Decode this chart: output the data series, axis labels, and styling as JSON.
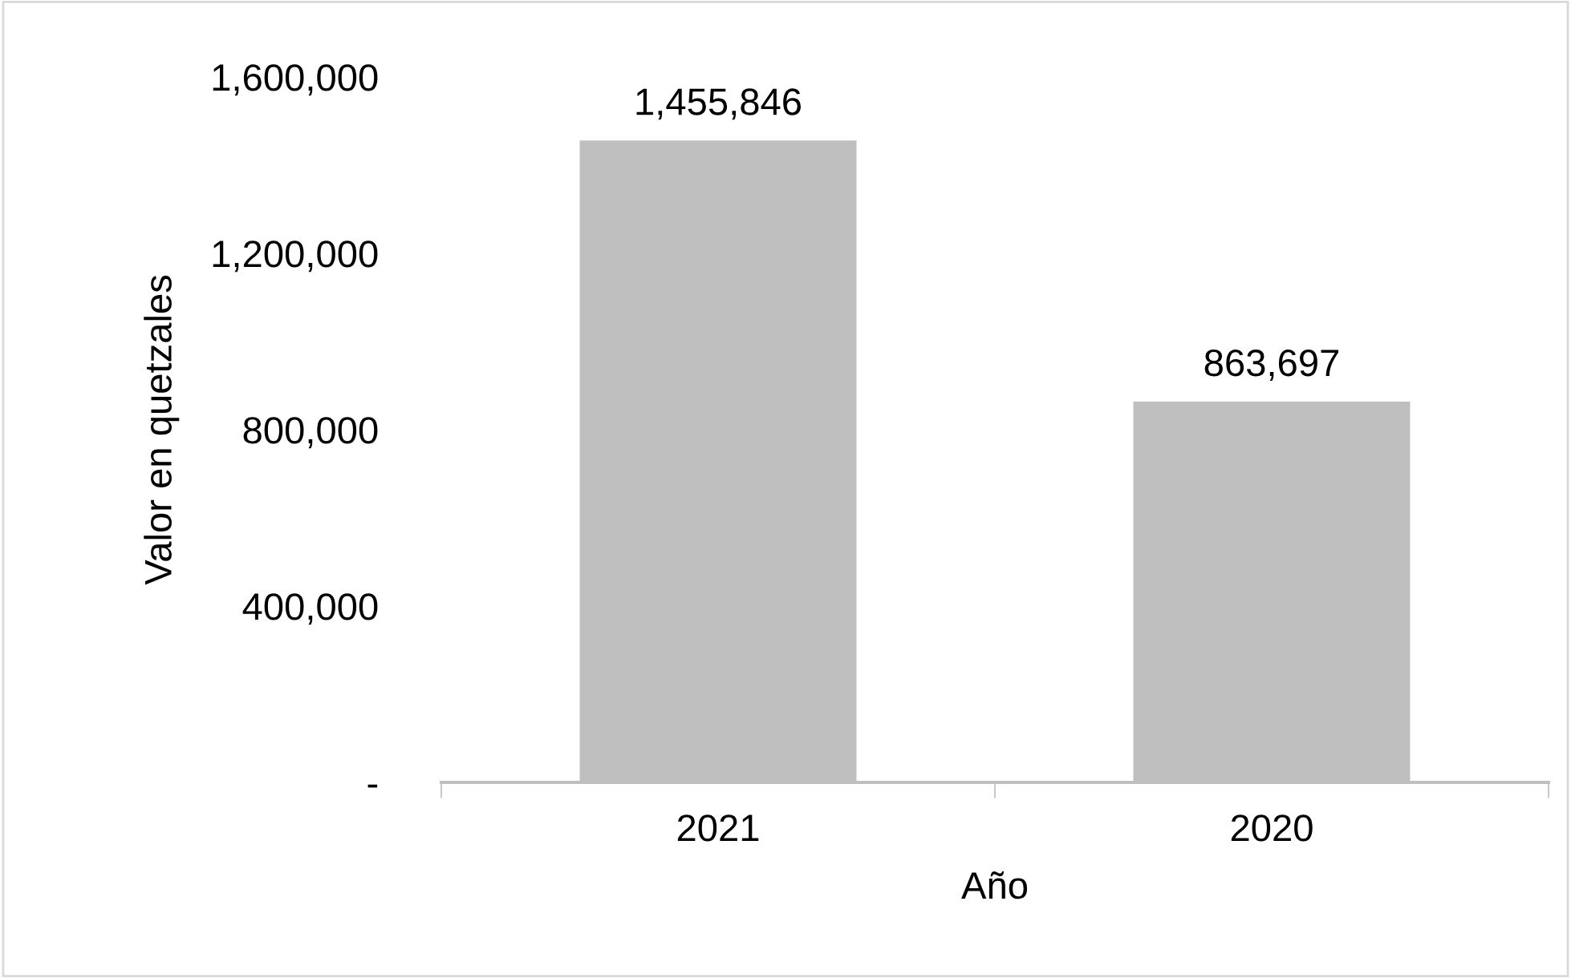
{
  "chart_data": {
    "type": "bar",
    "xlabel": "Año",
    "ylabel": "Valor en quetzales",
    "categories": [
      "2021",
      "2020"
    ],
    "values": [
      1455846,
      863697
    ],
    "value_labels": [
      "1,455,846",
      "863,697"
    ],
    "color": "#bfbfbf",
    "ylim": [
      0,
      1600000
    ],
    "yticks": [
      {
        "value": 0,
        "label": "-"
      },
      {
        "value": 400000,
        "label": "400,000"
      },
      {
        "value": 800000,
        "label": "800,000"
      },
      {
        "value": 1200000,
        "label": "1,200,000"
      },
      {
        "value": 1600000,
        "label": "1,600,000"
      }
    ],
    "grid": false,
    "legend": false
  }
}
